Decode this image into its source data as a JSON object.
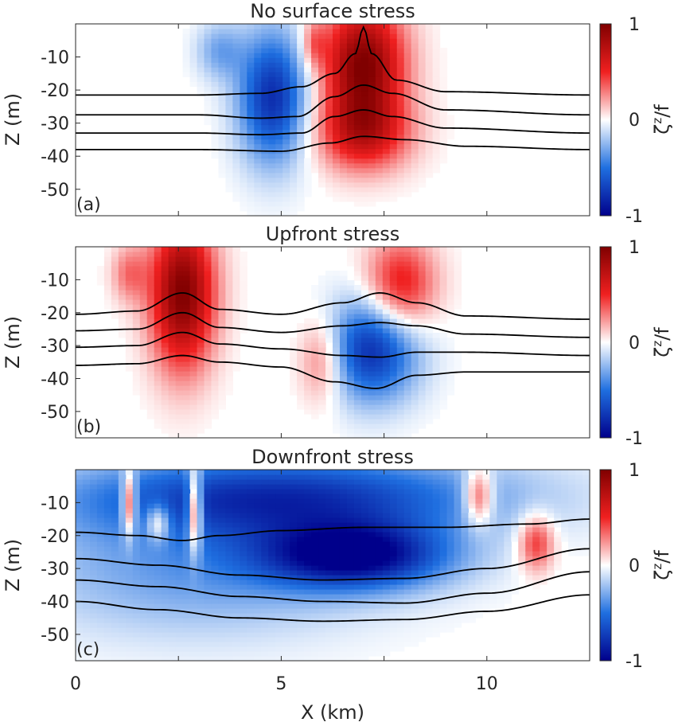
{
  "figure": {
    "xlabel": "X (km)",
    "x_ticks": [
      0,
      5,
      10
    ],
    "xlim": [
      0,
      12.5
    ]
  },
  "colorbar": {
    "label": "ζ^z/f",
    "label_base": "ζ",
    "label_sup": "z",
    "label_tail": "/f",
    "ticks": [
      "1",
      "0",
      "-1"
    ],
    "colormap": "red-white-blue diverging",
    "colors": {
      "neg": "#00008b",
      "mid": "#ffffff",
      "pos": "#800000"
    }
  },
  "chart_data": [
    {
      "type": "heatmap",
      "panel_label": "(a)",
      "title": "No surface stress",
      "ylabel": "Z (m)",
      "y_ticks": [
        -10,
        -20,
        -30,
        -40,
        -50
      ],
      "xlim": [
        0,
        12.5
      ],
      "ylim": [
        -58,
        0
      ],
      "clim": [
        -1,
        1
      ],
      "features": [
        {
          "sign": "neg",
          "x": 4.8,
          "z": -22,
          "sx": 0.6,
          "sz": 14,
          "amp": -0.8
        },
        {
          "sign": "pos",
          "x": 7.0,
          "z": -12,
          "sx": 0.7,
          "sz": 13,
          "amp": 1.0
        },
        {
          "sign": "pos",
          "x": 7.0,
          "z": -33,
          "sx": 0.8,
          "sz": 8,
          "amp": 0.6
        },
        {
          "sign": "neg",
          "x": 3.5,
          "z": -8,
          "sx": 0.4,
          "sz": 6,
          "amp": -0.3
        },
        {
          "sign": "pos",
          "x": 5.8,
          "z": -6,
          "sx": 0.2,
          "sz": 5,
          "amp": 0.3
        }
      ],
      "contours": [
        {
          "x": [
            0,
            3,
            4.5,
            5.5,
            6.3,
            6.8,
            7.0,
            7.2,
            7.8,
            9,
            12.5
          ],
          "z": [
            -21.5,
            -21.5,
            -21,
            -19,
            -15,
            -9,
            -1,
            -9,
            -17,
            -20.5,
            -21.5
          ]
        },
        {
          "x": [
            0,
            3,
            4.5,
            5.4,
            6.3,
            7.0,
            7.7,
            9,
            12.5
          ],
          "z": [
            -27.5,
            -27.5,
            -28.5,
            -28,
            -22,
            -18.5,
            -21,
            -26,
            -27.5
          ]
        },
        {
          "x": [
            0,
            3,
            4.5,
            5.5,
            6.3,
            7.0,
            7.7,
            9,
            12.5
          ],
          "z": [
            -33,
            -33,
            -33.5,
            -33,
            -28,
            -26,
            -28,
            -31.5,
            -33
          ]
        },
        {
          "x": [
            0,
            3,
            5,
            6.2,
            7.0,
            8,
            9.5,
            12.5
          ],
          "z": [
            -38,
            -38,
            -38.5,
            -36,
            -34,
            -35,
            -37,
            -38
          ]
        }
      ]
    },
    {
      "type": "heatmap",
      "panel_label": "(b)",
      "title": "Upfront stress",
      "ylabel": "Z (m)",
      "y_ticks": [
        -10,
        -20,
        -30,
        -40,
        -50
      ],
      "xlim": [
        0,
        12.5
      ],
      "ylim": [
        -58,
        0
      ],
      "clim": [
        -1,
        1
      ],
      "features": [
        {
          "sign": "pos",
          "x": 2.6,
          "z": -14,
          "sx": 0.55,
          "sz": 16,
          "amp": 1.0
        },
        {
          "sign": "neg",
          "x": 7.2,
          "z": -31,
          "sx": 0.8,
          "sz": 11,
          "amp": -0.8
        },
        {
          "sign": "pos",
          "x": 7.9,
          "z": -12,
          "sx": 0.6,
          "sz": 10,
          "amp": 0.6
        },
        {
          "sign": "pos",
          "x": 6.0,
          "z": -34,
          "sx": 0.4,
          "sz": 9,
          "amp": 0.4
        },
        {
          "sign": "pos",
          "x": 1.3,
          "z": -8,
          "sx": 0.3,
          "sz": 6,
          "amp": 0.3
        }
      ],
      "contours": [
        {
          "x": [
            0,
            1.5,
            2.6,
            3.5,
            5,
            6.5,
            7.4,
            8.3,
            9.5,
            12.5
          ],
          "z": [
            -20.5,
            -19.5,
            -14,
            -19,
            -20.5,
            -17,
            -14,
            -17,
            -21,
            -22
          ]
        },
        {
          "x": [
            0,
            1.5,
            2.6,
            3.5,
            5,
            6.5,
            7.4,
            8.3,
            9.5,
            12.5
          ],
          "z": [
            -25.5,
            -25,
            -20,
            -24.5,
            -26,
            -24,
            -23,
            -24,
            -26.5,
            -27.5
          ]
        },
        {
          "x": [
            0,
            1.5,
            2.6,
            3.5,
            5,
            6.5,
            7.4,
            8.3,
            9.5,
            12.5
          ],
          "z": [
            -30.5,
            -30,
            -26,
            -29.5,
            -31,
            -33,
            -33.5,
            -32,
            -32,
            -33
          ]
        },
        {
          "x": [
            0,
            1.5,
            2.6,
            3.5,
            5,
            6.3,
            7.3,
            8.3,
            9.5,
            12.5
          ],
          "z": [
            -36,
            -35.5,
            -33,
            -35,
            -36.5,
            -41,
            -43,
            -39,
            -38,
            -38
          ]
        }
      ]
    },
    {
      "type": "heatmap",
      "panel_label": "(c)",
      "title": "Downfront stress",
      "ylabel": "Z (m)",
      "y_ticks": [
        -10,
        -20,
        -30,
        -40,
        -50
      ],
      "xlim": [
        0,
        12.5
      ],
      "ylim": [
        -58,
        0
      ],
      "clim": [
        -1,
        1
      ],
      "features": [
        {
          "sign": "neg",
          "x": 6.8,
          "z": -26,
          "sx": 1.6,
          "sz": 7,
          "amp": -0.95
        },
        {
          "sign": "neg",
          "x": 5.0,
          "z": -8,
          "sx": 3.8,
          "sz": 9,
          "amp": -0.75
        },
        {
          "sign": "neg",
          "x": 3.0,
          "z": -30,
          "sx": 3.0,
          "sz": 14,
          "amp": -0.35
        },
        {
          "sign": "pos",
          "x": 1.3,
          "z": -10,
          "sx": 0.12,
          "sz": 7,
          "amp": 0.8
        },
        {
          "sign": "pos",
          "x": 2.9,
          "z": -12,
          "sx": 0.12,
          "sz": 9,
          "amp": 0.9
        },
        {
          "sign": "pos",
          "x": 9.8,
          "z": -8,
          "sx": 0.25,
          "sz": 6,
          "amp": 0.6
        },
        {
          "sign": "pos",
          "x": 11.2,
          "z": -22,
          "sx": 0.3,
          "sz": 6,
          "amp": 0.5
        },
        {
          "sign": "pos",
          "x": 2.0,
          "z": -16,
          "sx": 0.2,
          "sz": 4,
          "amp": 0.5
        }
      ],
      "contours": [
        {
          "x": [
            0,
            1.5,
            2.6,
            3.5,
            5,
            7,
            9,
            11,
            12.5
          ],
          "z": [
            -19,
            -20,
            -21.5,
            -20,
            -18.5,
            -17.5,
            -17.5,
            -16.5,
            -15
          ]
        },
        {
          "x": [
            0,
            2,
            4,
            6,
            8,
            10,
            12.5
          ],
          "z": [
            -27,
            -29,
            -32,
            -33.5,
            -33,
            -30,
            -24
          ]
        },
        {
          "x": [
            0,
            2,
            4,
            6,
            8,
            10,
            12.5
          ],
          "z": [
            -33.5,
            -35.5,
            -38.5,
            -40,
            -40.5,
            -37.5,
            -31
          ]
        },
        {
          "x": [
            0,
            2,
            4,
            6,
            8,
            10,
            12.5
          ],
          "z": [
            -40,
            -42.5,
            -45,
            -46,
            -45.5,
            -43,
            -38
          ]
        }
      ]
    }
  ]
}
